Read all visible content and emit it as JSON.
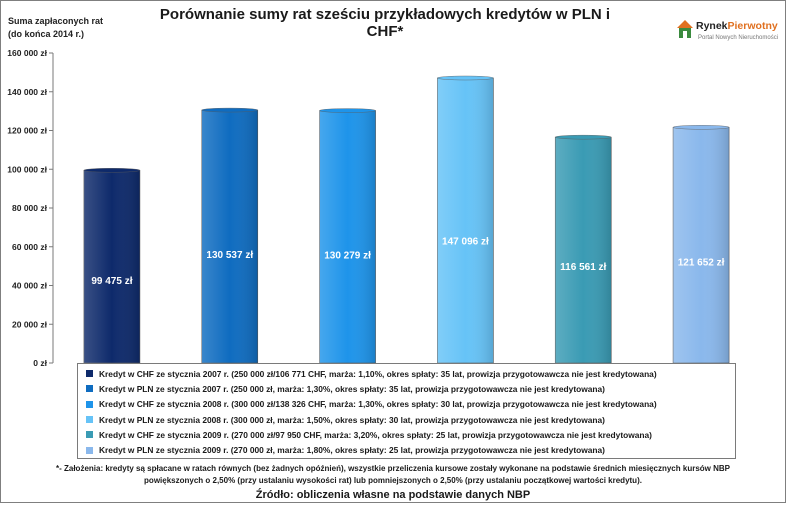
{
  "chart_data": {
    "type": "bar",
    "title": "Porównanie sumy rat sześciu przykładowych kredytów w PLN i CHF*",
    "ylabel_lines": [
      "Suma zapłaconych rat",
      "(do końca 2014 r.)"
    ],
    "xlabel": "",
    "ylim": [
      0,
      160000
    ],
    "y_ticks": [
      0,
      20000,
      40000,
      60000,
      80000,
      100000,
      120000,
      140000,
      160000
    ],
    "y_tick_labels": [
      "0 zł",
      "20 000 zł",
      "40 000 zł",
      "60 000 zł",
      "80 000 zł",
      "100 000 zł",
      "120 000 zł",
      "140 000 zł",
      "160 000 zł"
    ],
    "grid": false,
    "series": [
      {
        "name": "Kredyt w CHF ze stycznia 2007 r. (250 000 zł/106 771 CHF, marża: 1,10%, okres spłaty: 35 lat, prowizja przygotowawcza nie jest kredytowana)",
        "value": 99475,
        "label": "99 475 zł",
        "color": "#0e2a6b"
      },
      {
        "name": "Kredyt w PLN ze stycznia 2007 r. (250 000 zł, marża: 1,30%, okres spłaty: 35 lat, prowizja przygotowawcza nie jest kredytowana)",
        "value": 130537,
        "label": "130 537 zł",
        "color": "#0f6cc0"
      },
      {
        "name": "Kredyt w CHF ze stycznia 2008 r. (300 000 zł/138 326 CHF, marża: 1,30%, okres spłaty: 30 lat, prowizja przygotowawcza nie jest kredytowana)",
        "value": 130279,
        "label": "130 279 zł",
        "color": "#1e94ea"
      },
      {
        "name": "Kredyt w PLN ze stycznia 2008 r. (300 000 zł, marża: 1,50%, okres spłaty: 30 lat, prowizja przygotowawcza nie jest kredytowana)",
        "value": 147096,
        "label": "147 096 zł",
        "color": "#66c3f7"
      },
      {
        "name": "Kredyt w CHF ze stycznia 2009 r. (270 000 zł/97 950 CHF, marża: 3,20%, okres spłaty: 25 lat, prowizja przygotowawcza nie jest kredytowana)",
        "value": 116561,
        "label": "116 561 zł",
        "color": "#3a9bb4"
      },
      {
        "name": "Kredyt w PLN ze stycznia 2009 r. (270 000 zł, marża: 1,80%, okres spłaty: 25 lat, prowizja przygotowawcza nie jest kredytowana)",
        "value": 121652,
        "label": "121 652 zł",
        "color": "#8ab8ec"
      }
    ],
    "legend_position": "bottom"
  },
  "logo": {
    "name_part1": "Rynek",
    "name_part2": "Pierwotny",
    "tagline": "Portal Nowych Nieruchomości"
  },
  "footnote_lines": [
    "*- Założenia: kredyty są spłacane w ratach równych (bez żadnych opóźnień), wszystkie przeliczenia kursowe zostały wykonane na podstawie średnich miesięcznych kursów NBP",
    "powiększonych o 2,50% (przy ustalaniu wysokości rat) lub pomniejszonych o 2,50% (przy ustalaniu początkowej wartości kredytu)."
  ],
  "source": "Źródło: obliczenia własne na podstawie danych NBP"
}
